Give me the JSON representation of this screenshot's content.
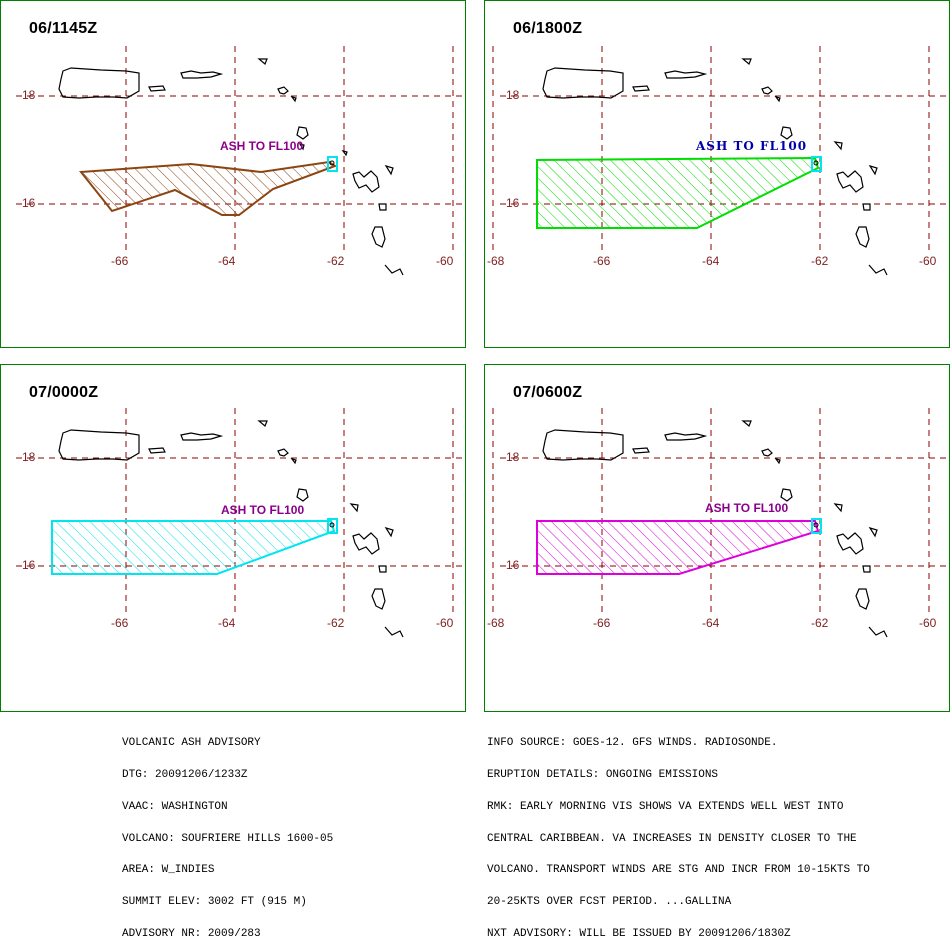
{
  "panels": [
    {
      "time": "06/1145Z",
      "ash_label": "ASH TO FL100",
      "color": "#8B4513",
      "label_color": "#8B008B",
      "lat_labels": [
        "18",
        "16"
      ],
      "lon_labels": [
        "-66",
        "-64",
        "-62",
        "-60"
      ]
    },
    {
      "time": "06/1800Z",
      "ash_label": "ASH TO FL100",
      "color": "#00DD00",
      "label_color": "#0000AA",
      "lat_labels": [
        "18",
        "16"
      ],
      "lon_labels": [
        "-68",
        "-66",
        "-64",
        "-62",
        "-60"
      ]
    },
    {
      "time": "07/0000Z",
      "ash_label": "ASH TO FL100",
      "color": "#00E5EE",
      "label_color": "#8B008B",
      "lat_labels": [
        "18",
        "16"
      ],
      "lon_labels": [
        "-66",
        "-64",
        "-62",
        "-60"
      ]
    },
    {
      "time": "07/0600Z",
      "ash_label": "ASH TO FL100",
      "color": "#DD00DD",
      "label_color": "#8B008B",
      "lat_labels": [
        "18",
        "16"
      ],
      "lon_labels": [
        "-68",
        "-66",
        "-64",
        "-62",
        "-60"
      ]
    }
  ],
  "colors": {
    "panel_border": "#008000",
    "grid": "#8B0000",
    "volcano_marker": "#00E5EE",
    "coast": "#000000"
  },
  "advisory_left": [
    "VOLCANIC ASH ADVISORY",
    "DTG: 20091206/1233Z",
    "VAAC: WASHINGTON",
    "VOLCANO: SOUFRIERE HILLS 1600-05",
    "AREA: W_INDIES",
    "SUMMIT ELEV: 3002 FT (915 M)",
    "ADVISORY NR: 2009/283"
  ],
  "advisory_right": [
    "INFO SOURCE: GOES-12. GFS WINDS. RADIOSONDE.",
    "ERUPTION DETAILS: ONGOING EMISSIONS",
    "RMK: EARLY MORNING VIS SHOWS VA EXTENDS WELL WEST INTO",
    "CENTRAL CARIBBEAN. VA INCREASES IN DENSITY CLOSER TO THE",
    "VOLCANO. TRANSPORT WINDS ARE STG AND INCR FROM 10-15KTS TO",
    "20-25KTS OVER FCST PERIOD. ...GALLINA",
    "NXT ADVISORY: WILL BE ISSUED BY 20091206/1830Z"
  ]
}
